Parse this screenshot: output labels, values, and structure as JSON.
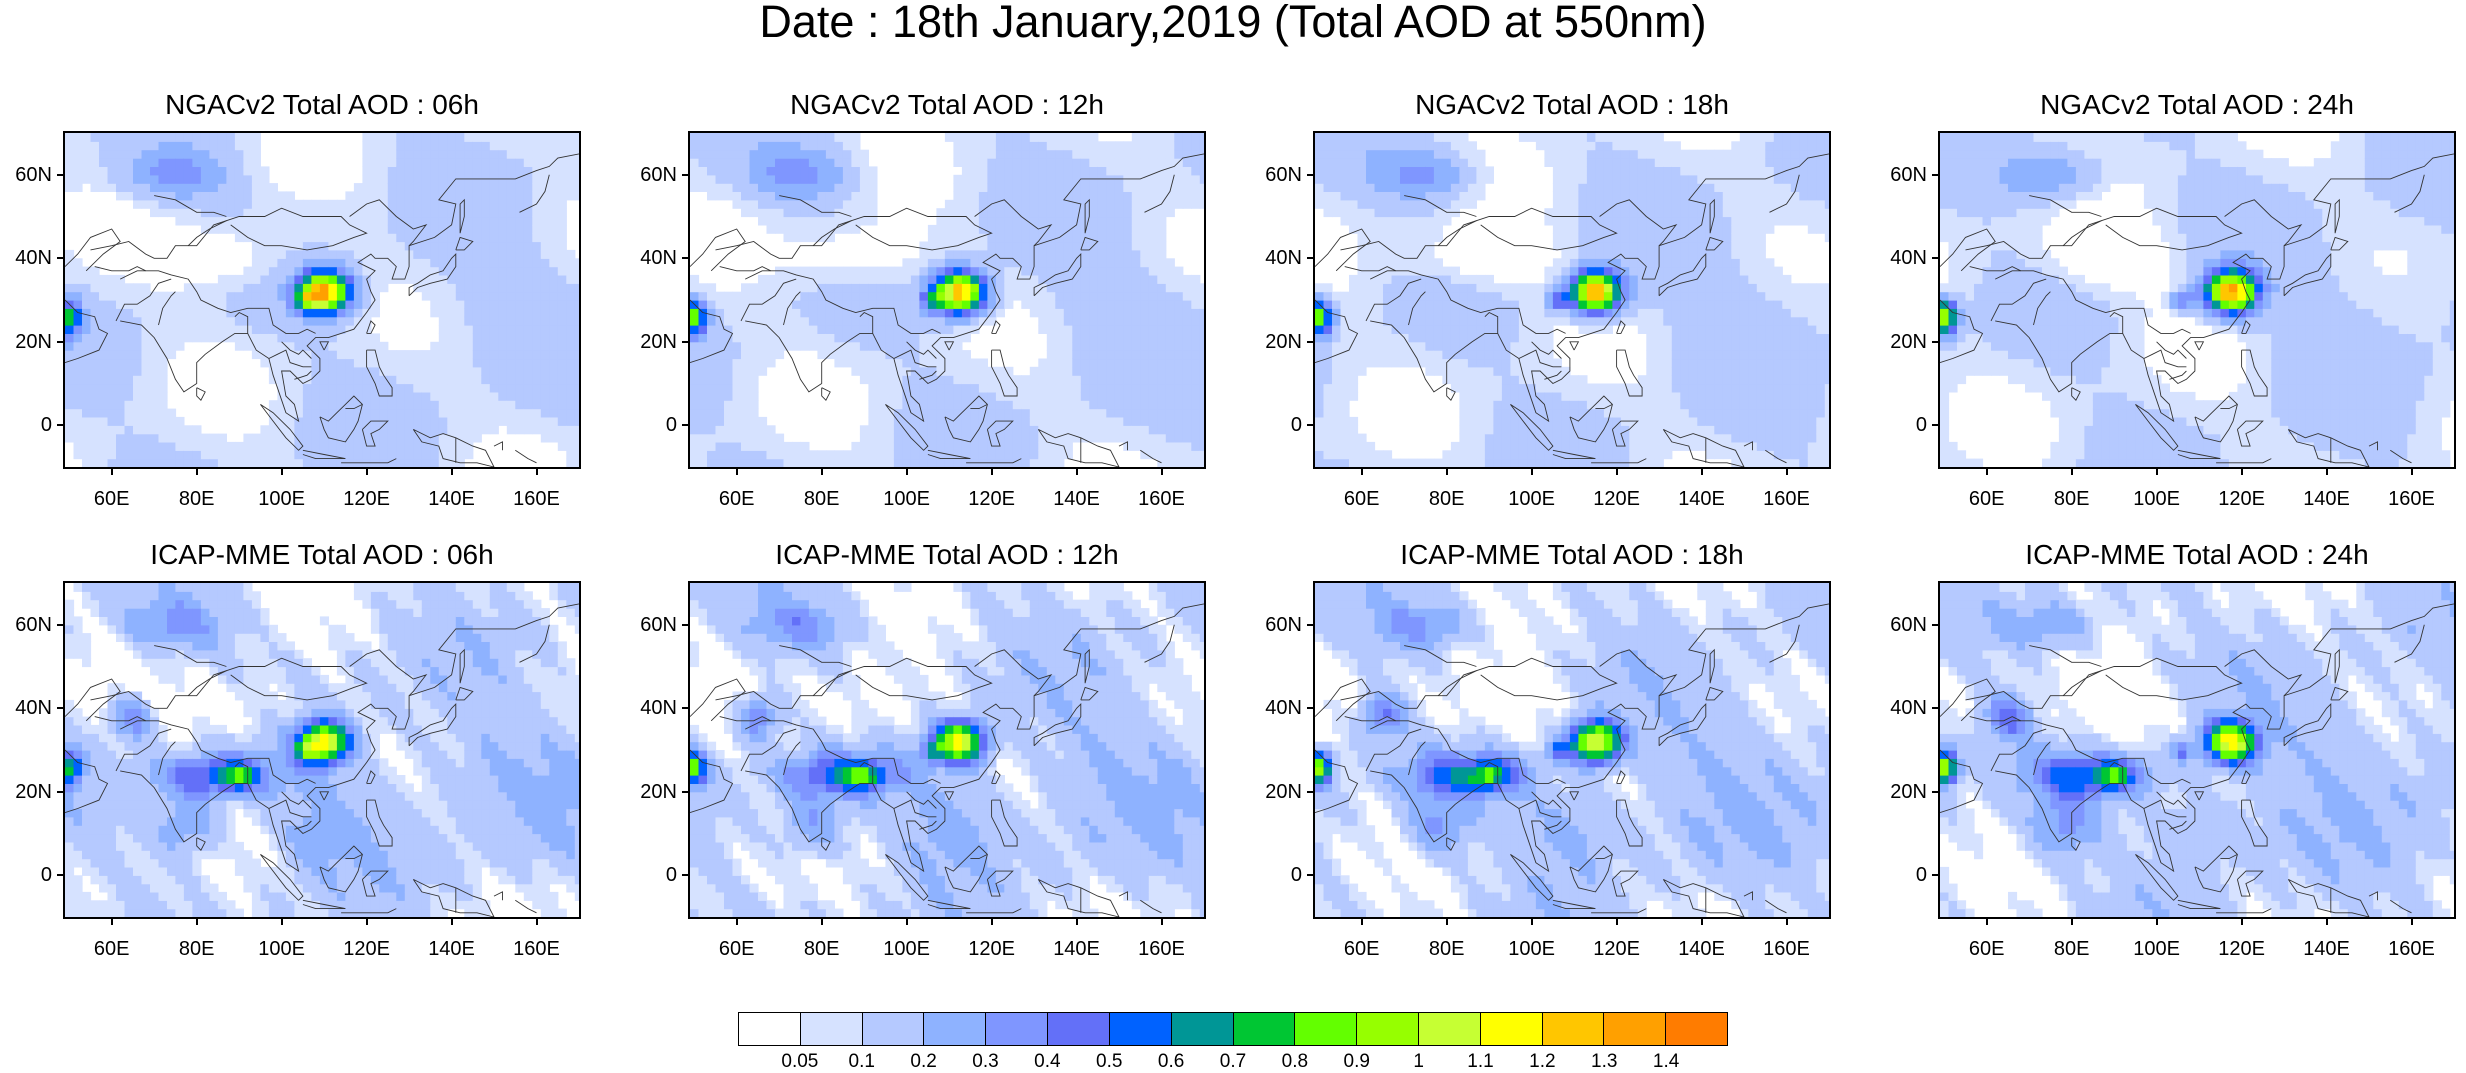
{
  "title": "Date : 18th January,2019 (Total AOD at 550nm)",
  "panels": [
    {
      "title": "NGACv2 Total AOD : 06h",
      "model": "ngac",
      "hour": 6
    },
    {
      "title": "NGACv2 Total AOD : 12h",
      "model": "ngac",
      "hour": 12
    },
    {
      "title": "NGACv2 Total AOD : 18h",
      "model": "ngac",
      "hour": 18
    },
    {
      "title": "NGACv2 Total AOD : 24h",
      "model": "ngac",
      "hour": 24
    },
    {
      "title": "ICAP-MME Total AOD : 06h",
      "model": "icap",
      "hour": 6
    },
    {
      "title": "ICAP-MME Total AOD : 12h",
      "model": "icap",
      "hour": 12
    },
    {
      "title": "ICAP-MME Total AOD : 18h",
      "model": "icap",
      "hour": 18
    },
    {
      "title": "ICAP-MME Total AOD : 24h",
      "model": "icap",
      "hour": 24
    }
  ],
  "axes": {
    "lon_range": [
      49,
      170
    ],
    "lat_range": [
      -10,
      70
    ],
    "x_ticks": [
      "60E",
      "80E",
      "100E",
      "120E",
      "140E",
      "160E"
    ],
    "x_tick_values": [
      60,
      80,
      100,
      120,
      140,
      160
    ],
    "y_ticks": [
      "60N",
      "40N",
      "20N",
      "0"
    ],
    "y_tick_values": [
      60,
      40,
      20,
      0
    ]
  },
  "colorbar": {
    "labels": [
      "0.05",
      "0.1",
      "0.2",
      "0.3",
      "0.4",
      "0.5",
      "0.6",
      "0.7",
      "0.8",
      "0.9",
      "1",
      "1.1",
      "1.2",
      "1.3",
      "1.4"
    ],
    "levels": [
      0.05,
      0.1,
      0.2,
      0.3,
      0.4,
      0.5,
      0.6,
      0.7,
      0.8,
      0.9,
      1,
      1.1,
      1.2,
      1.3,
      1.4
    ],
    "colors": [
      "#ffffff",
      "#d6e2ff",
      "#b5c9ff",
      "#8eb2ff",
      "#7f96ff",
      "#6370f8",
      "#0062ff",
      "#009696",
      "#00c633",
      "#63ff00",
      "#96ff00",
      "#c6ff33",
      "#ffff00",
      "#ffc600",
      "#ffa000",
      "#ff7c00",
      "#ff1900"
    ]
  }
}
